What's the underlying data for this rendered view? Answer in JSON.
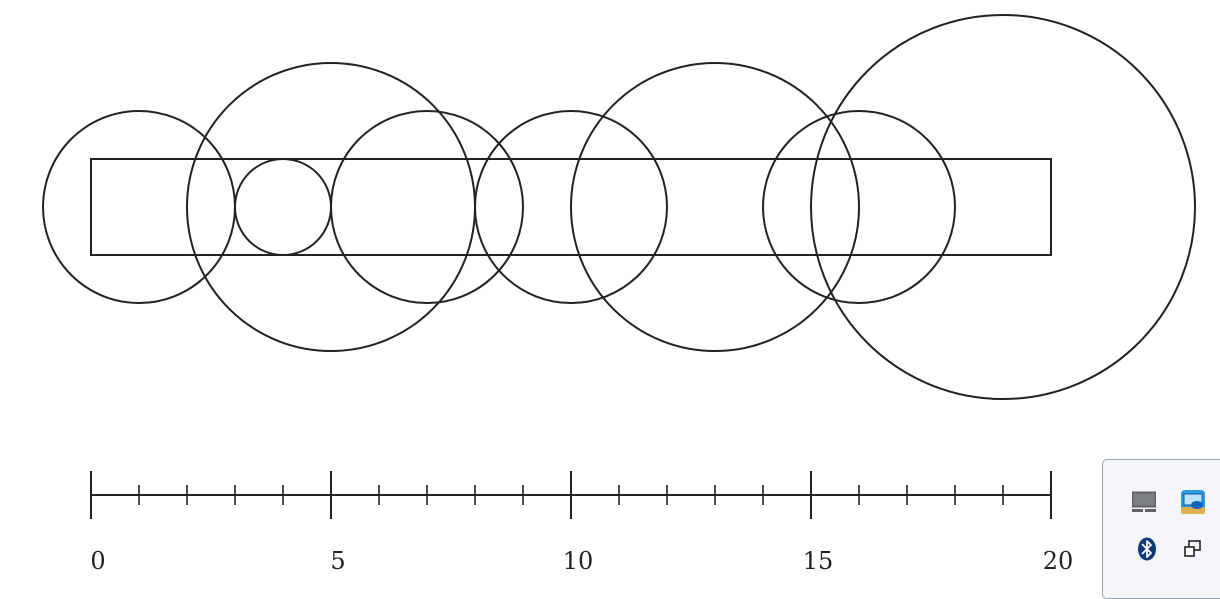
{
  "diagram": {
    "axis": {
      "min": 0,
      "max": 20,
      "minor_step": 1,
      "major_step": 5,
      "tick_labels": [
        "0",
        "5",
        "10",
        "15",
        "20"
      ]
    },
    "rectangle": {
      "x_start": 0,
      "x_end": 20
    },
    "circles": [
      {
        "center": 1,
        "radius": 2
      },
      {
        "center": 5,
        "radius": 3
      },
      {
        "center": 4,
        "radius": 1
      },
      {
        "center": 7,
        "radius": 2
      },
      {
        "center": 10,
        "radius": 2
      },
      {
        "center": 13,
        "radius": 3
      },
      {
        "center": 16,
        "radius": 2
      },
      {
        "center": 19,
        "radius": 4
      }
    ]
  },
  "tray": {
    "icons": [
      {
        "name": "display-icon"
      },
      {
        "name": "intel-graphics-icon"
      },
      {
        "name": "bluetooth-icon"
      },
      {
        "name": "windows-icon"
      }
    ]
  }
}
